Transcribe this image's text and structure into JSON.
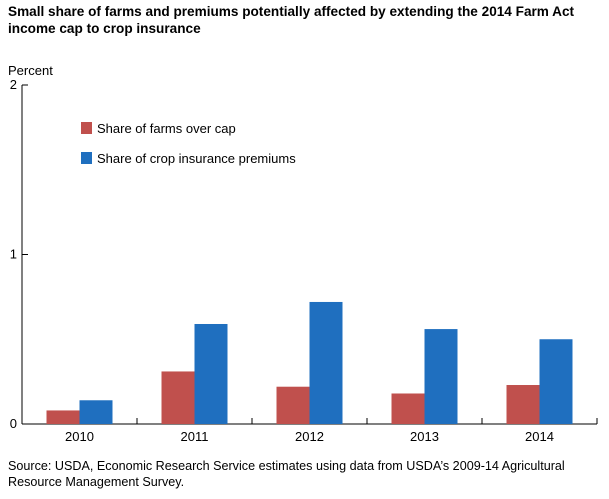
{
  "title": "Small share of farms and premiums potentially affected by extending the 2014 Farm Act income cap to crop insurance",
  "source": "Source:  USDA, Economic Research Service estimates using data from USDA’s 2009-14 Agricultural Resource Management Survey.",
  "chart_data": {
    "type": "bar",
    "categories": [
      "2010",
      "2011",
      "2012",
      "2013",
      "2014"
    ],
    "series": [
      {
        "name": "Share of farms over cap",
        "color": "#c0504d",
        "values": [
          0.08,
          0.31,
          0.22,
          0.18,
          0.23
        ]
      },
      {
        "name": "Share of crop insurance premiums",
        "color": "#1f6fbf",
        "values": [
          0.14,
          0.59,
          0.72,
          0.56,
          0.5
        ]
      }
    ],
    "ylabel": "Percent",
    "ylim": [
      0,
      2
    ],
    "yticks": [
      0,
      1,
      2
    ],
    "grid": false,
    "legend": "upper-left"
  }
}
